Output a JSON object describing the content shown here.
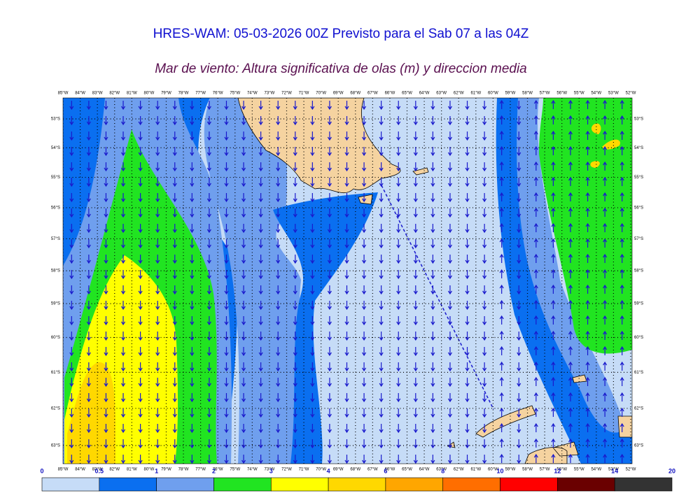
{
  "header": {
    "title": "HRES-WAM: 05-03-2026 00Z Previsto para el Sab 07 a las 04Z",
    "subtitle": "Mar de viento: Altura significativa de olas (m) y direccion media"
  },
  "map": {
    "lon_ticks": [
      {
        "value": -85,
        "label": "85°W"
      },
      {
        "value": -84,
        "label": "84°W"
      },
      {
        "value": -83,
        "label": "83°W"
      },
      {
        "value": -82,
        "label": "82°W"
      },
      {
        "value": -81,
        "label": "81°W"
      },
      {
        "value": -80,
        "label": "80°W"
      },
      {
        "value": -79,
        "label": "79°W"
      },
      {
        "value": -78,
        "label": "78°W"
      },
      {
        "value": -77,
        "label": "77°W"
      },
      {
        "value": -76,
        "label": "76°W"
      },
      {
        "value": -75,
        "label": "75°W"
      },
      {
        "value": -74,
        "label": "74°W"
      },
      {
        "value": -73,
        "label": "73°W"
      },
      {
        "value": -72,
        "label": "72°W"
      },
      {
        "value": -71,
        "label": "71°W"
      },
      {
        "value": -70,
        "label": "70°W"
      },
      {
        "value": -69,
        "label": "69°W"
      },
      {
        "value": -68,
        "label": "68°W"
      },
      {
        "value": -67,
        "label": "67°W"
      },
      {
        "value": -66,
        "label": "66°W"
      },
      {
        "value": -65,
        "label": "65°W"
      },
      {
        "value": -64,
        "label": "64°W"
      },
      {
        "value": -63,
        "label": "63°W"
      },
      {
        "value": -62,
        "label": "62°W"
      },
      {
        "value": -61,
        "label": "61°W"
      },
      {
        "value": -60,
        "label": "60°W"
      },
      {
        "value": -59,
        "label": "59°W"
      },
      {
        "value": -58,
        "label": "58°W"
      },
      {
        "value": -57,
        "label": "57°W"
      },
      {
        "value": -56,
        "label": "56°W"
      },
      {
        "value": -55,
        "label": "55°W"
      },
      {
        "value": -54,
        "label": "54°W"
      },
      {
        "value": -53,
        "label": "53°W"
      },
      {
        "value": -52,
        "label": "52°W"
      }
    ],
    "lat_ticks": [
      {
        "value": -53,
        "label": "53°S"
      },
      {
        "value": -54,
        "label": "54°S"
      },
      {
        "value": -55,
        "label": "55°S"
      },
      {
        "value": -56,
        "label": "56°S"
      },
      {
        "value": -57,
        "label": "57°S"
      },
      {
        "value": -58,
        "label": "58°S"
      },
      {
        "value": -59,
        "label": "59°S"
      },
      {
        "value": -60,
        "label": "60°S"
      },
      {
        "value": -61,
        "label": "61°S"
      },
      {
        "value": -62,
        "label": "62°S"
      },
      {
        "value": -63,
        "label": "63°S"
      }
    ]
  },
  "legend": {
    "levels": [
      0,
      0.5,
      1,
      2,
      3,
      4,
      6,
      8,
      10,
      12,
      14,
      20
    ],
    "colors": [
      "#c6dcf7",
      "#0a6ff0",
      "#6f9fee",
      "#21e421",
      "#ffff00",
      "#ffd800",
      "#ffa600",
      "#ff6e00",
      "#ff0000",
      "#6a0000",
      "#333333"
    ]
  }
}
